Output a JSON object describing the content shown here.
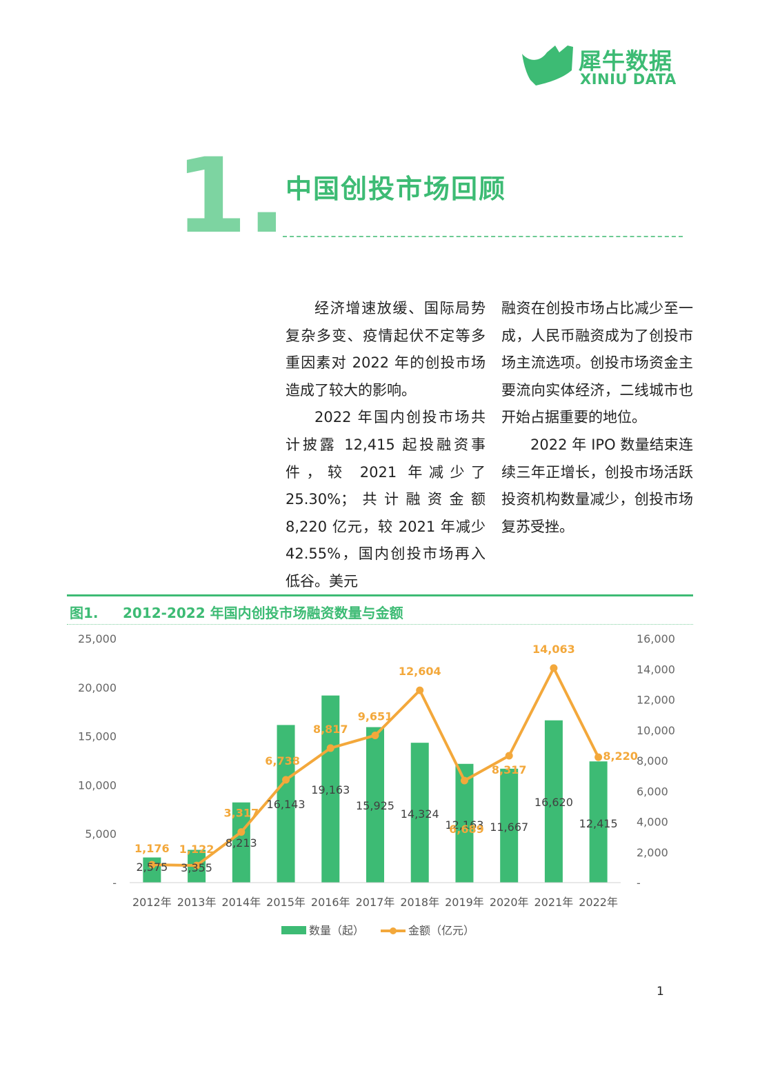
{
  "header": {
    "logo_cn": "犀牛数据",
    "logo_en": "XINIU DATA",
    "brand_color": "#3dbb74"
  },
  "chapter": {
    "number": "1.",
    "title": "中国创投市场回顾"
  },
  "body": {
    "left": [
      "经济增速放缓、国际局势复杂多变、疫情起伏不定等多重因素对 2022 年的创投市场造成了较大的影响。",
      "2022 年国内创投市场共计披露 12,415 起投融资事件，较 2021 年减少了 25.30%；共计融资金额 8,220 亿元，较 2021 年减少 42.55%，国内创投市场再入低谷。美元"
    ],
    "right": [
      "融资在创投市场占比减少至一成，人民币融资成为了创投市场主流选项。创投市场资金主要流向实体经济，二线城市也开始占据重要的地位。",
      "2022 年 IPO 数量结束连续三年正增长，创投市场活跃投资机构数量减少，创投市场复苏受挫。"
    ]
  },
  "figure": {
    "label": "图1.",
    "title": "2012-2022 年国内创投市场融资数量与金额"
  },
  "chart_data": {
    "type": "bar",
    "categories": [
      "2012年",
      "2013年",
      "2014年",
      "2015年",
      "2016年",
      "2017年",
      "2018年",
      "2019年",
      "2020年",
      "2021年",
      "2022年"
    ],
    "series": [
      {
        "name": "数量（起）",
        "type": "bar",
        "axis": "left",
        "color": "#3dbb74",
        "values": [
          2575,
          3355,
          8213,
          16143,
          19163,
          15925,
          14324,
          12163,
          11667,
          16620,
          12415
        ],
        "labels": [
          "2,575",
          "3,355",
          "8,213",
          "16,143",
          "19,163",
          "15,925",
          "14,324",
          "12,163",
          "11,667",
          "16,620",
          "12,415"
        ]
      },
      {
        "name": "金额（亿元）",
        "type": "line",
        "axis": "right",
        "color": "#f3a83b",
        "values": [
          1176,
          1122,
          3317,
          6738,
          8817,
          9651,
          12604,
          6689,
          8317,
          14063,
          8220
        ],
        "labels": [
          "1,176",
          "1,122",
          "3,317",
          "6,738",
          "8,817",
          "9,651",
          "12,604",
          "6,689",
          "8,317",
          "14,063",
          "8,220"
        ]
      }
    ],
    "y_left": {
      "ylim": [
        0,
        25000
      ],
      "ticks": [
        "-",
        "5,000",
        "10,000",
        "15,000",
        "20,000",
        "25,000"
      ]
    },
    "y_right": {
      "ylim": [
        0,
        16000
      ],
      "ticks": [
        "-",
        "2,000",
        "4,000",
        "6,000",
        "8,000",
        "10,000",
        "12,000",
        "14,000",
        "16,000"
      ]
    },
    "legend_position": "bottom",
    "grid": false
  },
  "page_number": "1"
}
